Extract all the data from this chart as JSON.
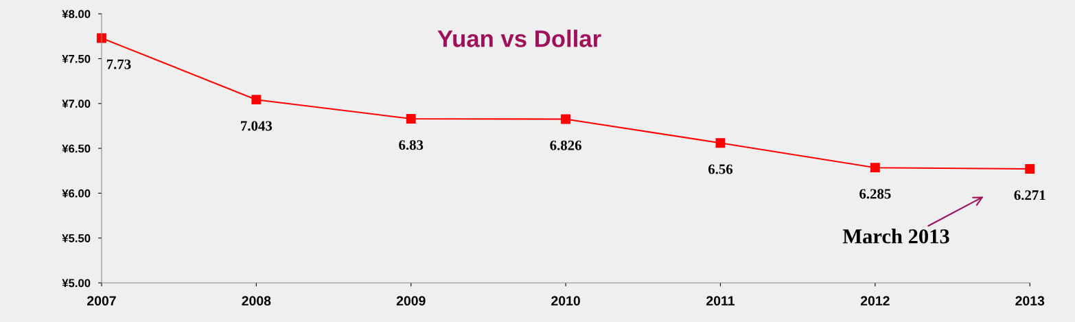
{
  "chart_data": {
    "type": "line",
    "title": "Yuan vs Dollar",
    "categories": [
      "2007",
      "2008",
      "2009",
      "2010",
      "2011",
      "2012",
      "2013"
    ],
    "series": [
      {
        "color": "#ff0000",
        "values": [
          7.73,
          7.043,
          6.83,
          6.826,
          6.56,
          6.285,
          6.271
        ]
      }
    ],
    "ylim": [
      5,
      8
    ],
    "yticks": [
      {
        "value": 5,
        "label": "¥5.00"
      },
      {
        "value": 5.5,
        "label": "¥5.50"
      },
      {
        "value": 6,
        "label": "¥6.00"
      },
      {
        "value": 6.5,
        "label": "¥6.50"
      },
      {
        "value": 7,
        "label": "¥7.00"
      },
      {
        "value": 7.5,
        "label": "¥7.50"
      },
      {
        "value": 8,
        "label": "¥8.00"
      }
    ],
    "data_labels": true,
    "marker": "square",
    "line_style": "solid",
    "grid": false,
    "legend": false,
    "annotations": [
      "March 2013"
    ]
  }
}
